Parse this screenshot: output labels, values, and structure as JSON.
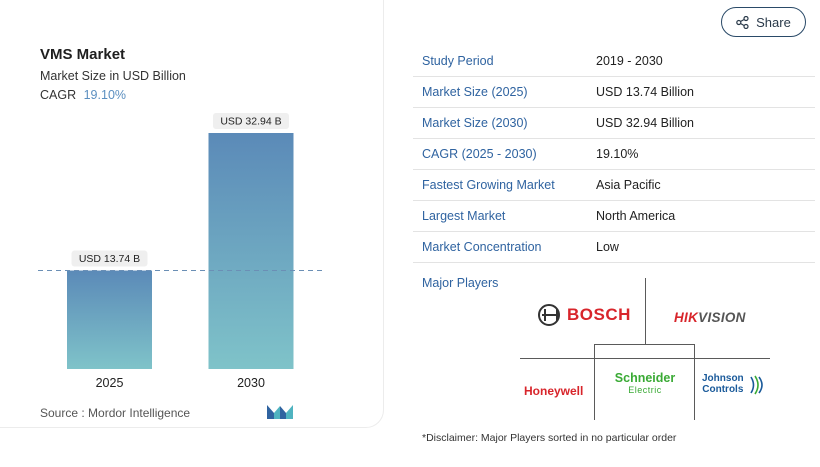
{
  "card": {
    "title": "VMS Market",
    "subtitle": "Market Size in USD Billion",
    "cagr_label": "CAGR",
    "cagr_value": "19.10%",
    "source": "Source :  Mordor Intelligence",
    "logo": "mordor-intelligence-logo"
  },
  "chart_data": {
    "type": "bar",
    "title": "VMS Market",
    "subtitle": "Market Size in USD Billion",
    "categories": [
      "2025",
      "2030"
    ],
    "values": [
      13.74,
      32.94
    ],
    "data_labels": [
      "USD 13.74 B",
      "USD 32.94 B"
    ],
    "ylim": [
      0,
      32.94
    ],
    "reference_line_value": 13.74,
    "grid": false,
    "colors": {
      "bar_top": "#5b8ab8",
      "bar_bottom": "#7fc3c9",
      "dashed_line": "#6b8fb5"
    }
  },
  "share": {
    "label": "Share",
    "icon": "share-icon"
  },
  "stats": [
    {
      "key": "Study Period",
      "value": "2019 - 2030"
    },
    {
      "key": "Market Size (2025)",
      "value": "USD 13.74 Billion"
    },
    {
      "key": "Market Size (2030)",
      "value": "USD 32.94 Billion"
    },
    {
      "key": "CAGR (2025 - 2030)",
      "value": "19.10%"
    },
    {
      "key": "Fastest Growing Market",
      "value": "Asia Pacific"
    },
    {
      "key": "Largest Market",
      "value": "North America"
    },
    {
      "key": "Market Concentration",
      "value": "Low"
    }
  ],
  "players": {
    "title": "Major Players",
    "bosch": "BOSCH",
    "hikvision_red": "HIK",
    "hikvision_grey": "VISION",
    "honeywell": "Honeywell",
    "schneider_line1": "Schneider",
    "schneider_line2": "Electric",
    "johnson_line1": "Johnson",
    "johnson_line2": "Controls"
  },
  "disclaimer": "*Disclaimer: Major Players sorted in no particular order"
}
